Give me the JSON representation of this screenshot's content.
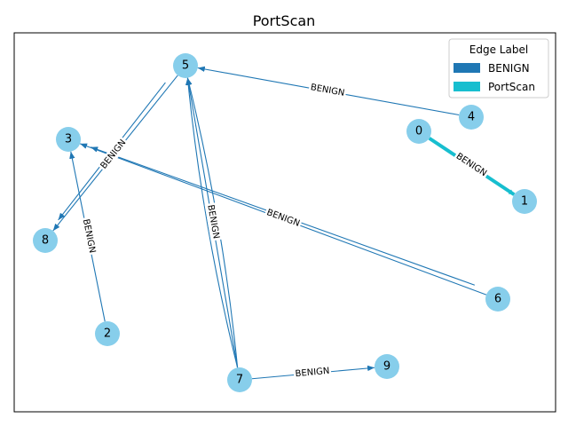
{
  "title": "PortScan",
  "colors": {
    "node": "#87ceeb",
    "benign": "#1f77b4",
    "portscan": "#17becf"
  },
  "legend": {
    "title": "Edge Label",
    "items": [
      {
        "label": "BENIGN",
        "color": "#1f77b4"
      },
      {
        "label": "PortScan",
        "color": "#17becf"
      }
    ]
  },
  "nodes": [
    "0",
    "1",
    "2",
    "3",
    "4",
    "5",
    "6",
    "7",
    "8",
    "9"
  ],
  "edges": [
    {
      "from": "4",
      "to": "5",
      "label": "BENIGN",
      "type": "BENIGN"
    },
    {
      "from": "0",
      "to": "1",
      "label": "BENIGN",
      "type": "PortScan",
      "bidirectional": true
    },
    {
      "from": "5",
      "to": "8",
      "label": "BENIGN",
      "type": "BENIGN"
    },
    {
      "from": "2",
      "to": "3",
      "label": "BENIGN",
      "type": "BENIGN"
    },
    {
      "from": "6",
      "to": "3",
      "label": "BENIGN",
      "type": "BENIGN"
    },
    {
      "from": "7",
      "to": "5",
      "label": "BENIGN",
      "type": "BENIGN"
    },
    {
      "from": "7",
      "to": "9",
      "label": "BENIGN",
      "type": "BENIGN"
    }
  ]
}
